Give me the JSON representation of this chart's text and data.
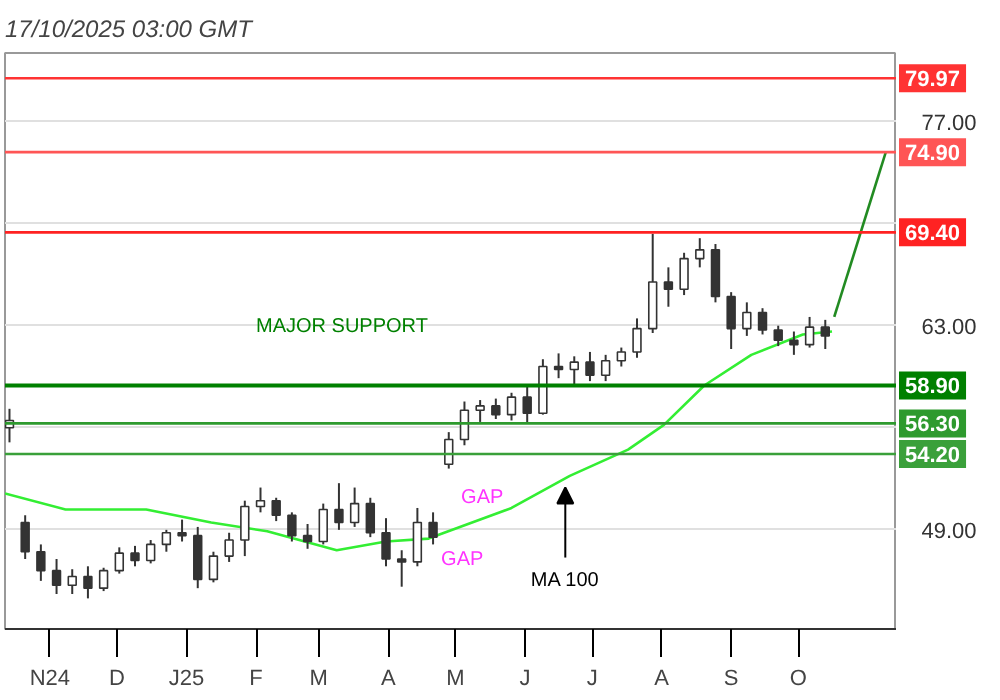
{
  "chart_data": {
    "type": "candlestick",
    "title": "17/10/2025 03:00 GMT",
    "color": "#333333",
    "x": [
      "2024-10-14",
      "2024-10-21",
      "2024-10-28",
      "2024-11-04",
      "2024-11-11",
      "2024-11-18",
      "2024-11-25",
      "2024-12-02",
      "2024-12-09",
      "2024-12-16",
      "2024-12-23",
      "2024-12-30",
      "2025-01-06",
      "2025-01-13",
      "2025-01-20",
      "2025-01-27",
      "2025-02-03",
      "2025-02-10",
      "2025-02-17",
      "2025-02-24",
      "2025-03-03",
      "2025-03-10",
      "2025-03-17",
      "2025-03-24",
      "2025-03-31",
      "2025-04-07",
      "2025-04-14",
      "2025-04-21",
      "2025-04-28",
      "2025-05-05",
      "2025-05-12",
      "2025-05-19",
      "2025-05-26",
      "2025-06-02",
      "2025-06-09",
      "2025-06-16",
      "2025-06-23",
      "2025-06-30",
      "2025-07-07",
      "2025-07-14",
      "2025-07-21",
      "2025-07-28",
      "2025-08-04",
      "2025-08-11",
      "2025-08-18",
      "2025-08-25",
      "2025-09-01",
      "2025-09-08",
      "2025-09-15",
      "2025-09-22",
      "2025-09-29",
      "2025-10-06",
      "2025-10-13"
    ],
    "ohlc": [
      [
        56.0,
        57.3,
        55.0,
        56.5
      ],
      [
        49.5,
        50.0,
        47.0,
        47.5
      ],
      [
        47.5,
        48.0,
        45.5,
        46.2
      ],
      [
        46.2,
        47.0,
        44.6,
        45.2
      ],
      [
        45.2,
        46.3,
        44.6,
        45.8
      ],
      [
        45.8,
        46.5,
        44.3,
        45.0
      ],
      [
        45.0,
        46.4,
        44.8,
        46.2
      ],
      [
        46.2,
        47.8,
        46.0,
        47.4
      ],
      [
        47.4,
        47.9,
        46.5,
        46.9
      ],
      [
        46.9,
        48.3,
        46.7,
        48.0
      ],
      [
        48.0,
        49.0,
        47.5,
        48.8
      ],
      [
        48.8,
        49.7,
        48.2,
        48.6
      ],
      [
        48.6,
        49.2,
        45.0,
        45.6
      ],
      [
        45.6,
        47.5,
        45.4,
        47.2
      ],
      [
        47.2,
        48.8,
        46.8,
        48.3
      ],
      [
        48.3,
        51.0,
        47.2,
        50.6
      ],
      [
        50.6,
        51.9,
        50.2,
        51.0
      ],
      [
        51.0,
        51.2,
        49.6,
        50.0
      ],
      [
        50.0,
        50.2,
        48.2,
        48.6
      ],
      [
        48.6,
        49.4,
        47.7,
        48.2
      ],
      [
        48.2,
        50.8,
        48.0,
        50.4
      ],
      [
        50.4,
        52.2,
        49.0,
        49.5
      ],
      [
        49.5,
        51.9,
        49.2,
        50.8
      ],
      [
        50.8,
        51.2,
        48.5,
        48.8
      ],
      [
        48.8,
        49.8,
        46.5,
        47.0
      ],
      [
        47.0,
        47.6,
        45.1,
        46.8
      ],
      [
        46.8,
        50.5,
        46.5,
        49.5
      ],
      [
        49.5,
        50.2,
        48.0,
        48.5
      ],
      [
        53.5,
        55.7,
        53.2,
        55.2
      ],
      [
        55.2,
        57.8,
        54.8,
        57.2
      ],
      [
        57.2,
        57.9,
        56.4,
        57.5
      ],
      [
        57.5,
        58.0,
        56.6,
        56.9
      ],
      [
        56.9,
        58.4,
        56.5,
        58.1
      ],
      [
        58.1,
        58.8,
        56.3,
        57.0
      ],
      [
        57.0,
        60.7,
        56.9,
        60.2
      ],
      [
        60.2,
        61.1,
        59.4,
        60.0
      ],
      [
        60.0,
        60.9,
        59.0,
        60.5
      ],
      [
        60.5,
        61.2,
        59.2,
        59.6
      ],
      [
        59.6,
        61.0,
        59.2,
        60.6
      ],
      [
        60.6,
        61.5,
        60.2,
        61.2
      ],
      [
        61.2,
        63.5,
        60.8,
        62.8
      ],
      [
        62.8,
        69.3,
        62.5,
        66.0
      ],
      [
        66.0,
        67.0,
        64.3,
        65.5
      ],
      [
        65.5,
        68.0,
        65.1,
        67.6
      ],
      [
        67.6,
        69.0,
        67.0,
        68.2
      ],
      [
        68.2,
        68.6,
        64.6,
        65.0
      ],
      [
        65.0,
        65.3,
        61.4,
        62.8
      ],
      [
        62.8,
        64.6,
        62.3,
        63.9
      ],
      [
        63.9,
        64.2,
        62.4,
        62.7
      ],
      [
        62.7,
        63.0,
        61.6,
        62.0
      ],
      [
        62.0,
        62.6,
        61.0,
        61.7
      ],
      [
        61.7,
        63.6,
        61.5,
        62.9
      ],
      [
        62.9,
        63.4,
        61.4,
        62.3
      ]
    ],
    "series": [
      {
        "type": "line",
        "color": "#33ee33",
        "x": [
          "2024-10-12",
          "2024-11-08",
          "2024-12-14",
          "2025-01-12",
          "2025-02-06",
          "2025-03-09",
          "2025-03-31",
          "2025-04-19",
          "2025-05-26",
          "2025-06-21",
          "2025-07-17",
          "2025-08-02",
          "2025-08-20",
          "2025-09-10",
          "2025-10-03",
          "2025-10-16"
        ],
        "values": [
          51.5,
          50.4,
          50.4,
          49.5,
          48.9,
          47.6,
          48.2,
          48.4,
          50.5,
          52.7,
          54.5,
          56.2,
          58.9,
          61.0,
          62.4,
          62.6
        ]
      },
      {
        "type": "line",
        "color": "#228b22",
        "x": [
          "2025-10-17",
          "2025-11-09"
        ],
        "values": [
          63.6,
          74.9
        ]
      }
    ],
    "xlim": [
      "2024-10-12",
      "2025-11-14"
    ],
    "xticks": [
      {
        "value": "2024-11-01",
        "label": "N24"
      },
      {
        "value": "2024-12-01",
        "label": "D"
      },
      {
        "value": "2025-01-01",
        "label": "J25"
      },
      {
        "value": "2025-02-01",
        "label": "F"
      },
      {
        "value": "2025-03-01",
        "label": "M"
      },
      {
        "value": "2025-04-01",
        "label": "A"
      },
      {
        "value": "2025-05-01",
        "label": "M"
      },
      {
        "value": "2025-06-01",
        "label": "J"
      },
      {
        "value": "2025-07-01",
        "label": "J"
      },
      {
        "value": "2025-08-01",
        "label": "A"
      },
      {
        "value": "2025-09-01",
        "label": "S"
      },
      {
        "value": "2025-10-01",
        "label": "O"
      }
    ],
    "ylim": [
      42.2,
      81.7
    ],
    "yticks": [
      {
        "value": 49,
        "label": "49.00"
      },
      {
        "value": 56,
        "label": null
      },
      {
        "value": 63,
        "label": "63.00"
      },
      {
        "value": 70,
        "label": null
      },
      {
        "value": 77,
        "label": "77.00"
      }
    ],
    "grid": "y",
    "ref_lines": [
      {
        "axis": "y",
        "value": 79.97,
        "label": "79.97",
        "color": "#ff3333"
      },
      {
        "axis": "y",
        "value": 74.9,
        "label": "74.90",
        "color": "#ff5555"
      },
      {
        "axis": "y",
        "value": 69.4,
        "label": "69.40",
        "color": "#ff2222"
      },
      {
        "axis": "y",
        "value": 58.9,
        "label": "58.90",
        "color": "#008000"
      },
      {
        "axis": "y",
        "value": 56.3,
        "label": "56.30",
        "color": "#2e9a2e"
      },
      {
        "axis": "y",
        "value": 54.2,
        "label": "54.20",
        "color": "#3aa03a"
      }
    ],
    "annotations": [
      {
        "text": "MAJOR SUPPORT",
        "x": "2025-02-01",
        "y": 58.9
      },
      {
        "text": "GAP",
        "x": "2025-04-21",
        "y": 50.2
      },
      {
        "text": "GAP",
        "x": "2025-04-21",
        "y": 48.0
      },
      {
        "text": "MA 100",
        "x": "2025-06-19",
        "y": 52.3
      }
    ]
  }
}
